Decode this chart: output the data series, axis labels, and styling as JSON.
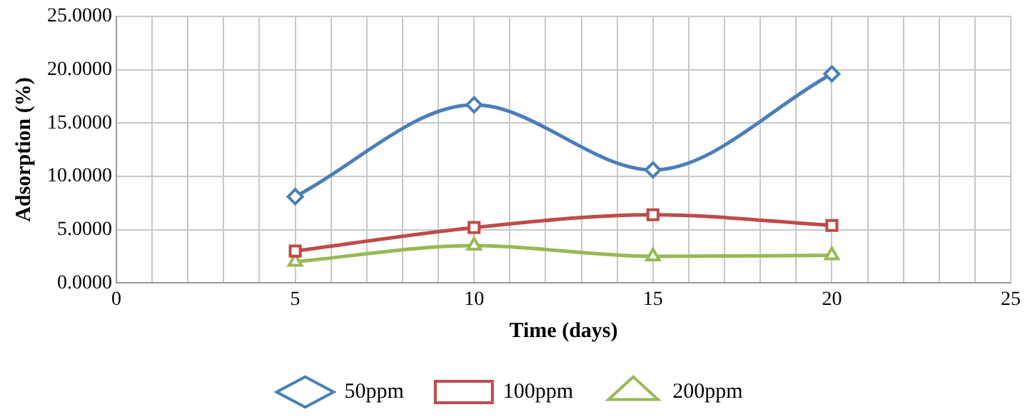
{
  "chart_data": {
    "type": "line",
    "xlabel": "Time (days)",
    "ylabel": "Adsorption (%)",
    "xlim": [
      0,
      25
    ],
    "xticks": [
      0,
      {
        "value": 1,
        "label": null
      },
      {
        "value": 2,
        "label": null
      },
      {
        "value": 3,
        "label": null
      },
      {
        "value": 4,
        "label": null
      },
      5,
      {
        "value": 6,
        "label": null
      },
      {
        "value": 7,
        "label": null
      },
      {
        "value": 8,
        "label": null
      },
      {
        "value": 9,
        "label": null
      },
      10,
      {
        "value": 11,
        "label": null
      },
      {
        "value": 12,
        "label": null
      },
      {
        "value": 13,
        "label": null
      },
      {
        "value": 14,
        "label": null
      },
      15,
      {
        "value": 16,
        "label": null
      },
      {
        "value": 17,
        "label": null
      },
      {
        "value": 18,
        "label": null
      },
      {
        "value": 19,
        "label": null
      },
      20,
      {
        "value": 21,
        "label": null
      },
      {
        "value": 22,
        "label": null
      },
      {
        "value": 23,
        "label": null
      },
      {
        "value": 24,
        "label": null
      },
      25
    ],
    "ylim": [
      0,
      25
    ],
    "yticks": [
      {
        "value": 0,
        "label": "0.0000"
      },
      {
        "value": 5,
        "label": "5.0000"
      },
      {
        "value": 10,
        "label": "10.0000"
      },
      {
        "value": 15,
        "label": "15.0000"
      },
      {
        "value": 20,
        "label": "20.0000"
      },
      {
        "value": 25,
        "label": "25.0000"
      }
    ],
    "x": [
      5,
      10,
      15,
      20
    ],
    "grid": true,
    "legend": "bottom",
    "series": [
      {
        "name": "50ppm",
        "color": "#4a7ebb",
        "marker": "diamond",
        "values": [
          8.1,
          16.7,
          10.6,
          19.6
        ]
      },
      {
        "name": "100ppm",
        "color": "#be4b48",
        "marker": "square",
        "values": [
          3.0,
          5.2,
          6.4,
          5.4
        ]
      },
      {
        "name": "200ppm",
        "color": "#98b954",
        "marker": "triangle",
        "values": [
          2.0,
          3.5,
          2.5,
          2.6
        ]
      }
    ]
  }
}
